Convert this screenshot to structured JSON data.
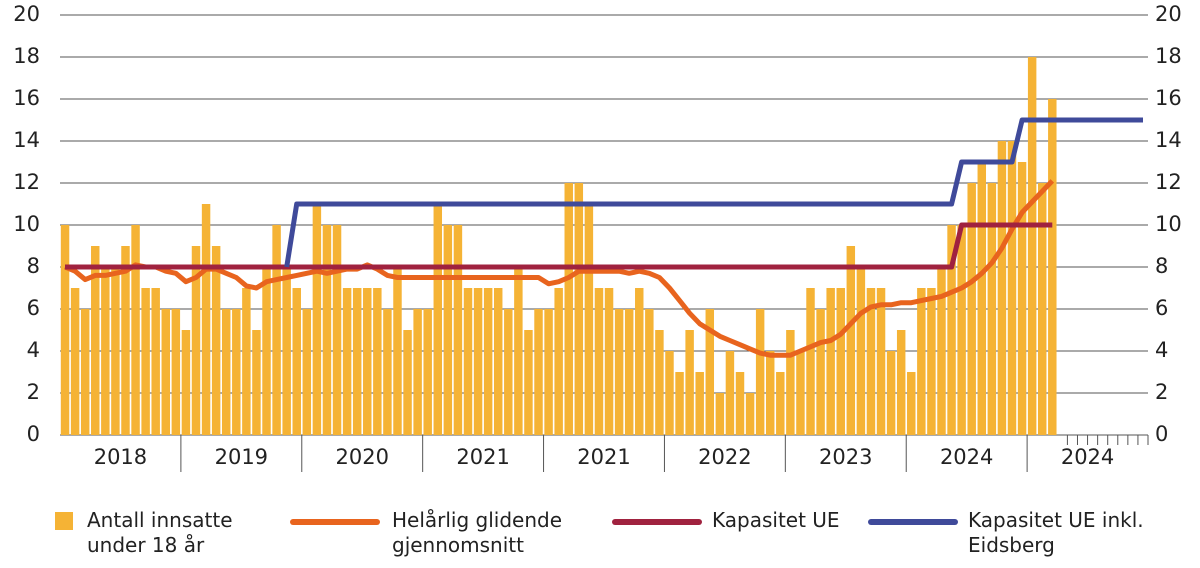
{
  "chart_data": {
    "type": "bar",
    "groups": [
      "2018",
      "2019",
      "2020",
      "2021",
      "2021",
      "2022",
      "2023",
      "2024",
      "2024"
    ],
    "categories": [
      null,
      null,
      null,
      null,
      null,
      null,
      null,
      null,
      null,
      null,
      null,
      null,
      null,
      null,
      null,
      null,
      null,
      null,
      null,
      null,
      null,
      null,
      null,
      null,
      null,
      null,
      null,
      null,
      null,
      null,
      null,
      null,
      null,
      null,
      null,
      null,
      null,
      null,
      null,
      null,
      null,
      null,
      null,
      null,
      null,
      null,
      null,
      null,
      null,
      null,
      null,
      null,
      null,
      null,
      null,
      null,
      null,
      null,
      null,
      null,
      null,
      null,
      null,
      null,
      null,
      null,
      null,
      null,
      null,
      null,
      null,
      null,
      null,
      null,
      null,
      null,
      null,
      null,
      null,
      null,
      null,
      null,
      null,
      null,
      null,
      null,
      null,
      null,
      null,
      null,
      null,
      null,
      null,
      null,
      null,
      null,
      null,
      null,
      null,
      null,
      null,
      null,
      null,
      null,
      null,
      null,
      null,
      null
    ],
    "series": [
      {
        "name": "Antall innsatte under 18 år",
        "color": "#f5b335",
        "type": "bar",
        "values": [
          10,
          7,
          6,
          9,
          8,
          8,
          9,
          10,
          7,
          7,
          6,
          6,
          5,
          9,
          11,
          9,
          6,
          6,
          7,
          5,
          8,
          10,
          8,
          7,
          6,
          11,
          10,
          10,
          7,
          7,
          7,
          7,
          6,
          8,
          5,
          6,
          6,
          11,
          10,
          10,
          7,
          7,
          7,
          7,
          6,
          8,
          5,
          6,
          6,
          7,
          12,
          12,
          11,
          7,
          7,
          6,
          6,
          7,
          6,
          5,
          4,
          3,
          5,
          3,
          6,
          2,
          4,
          3,
          2,
          6,
          4,
          3,
          5,
          4,
          7,
          6,
          7,
          7,
          9,
          8,
          7,
          7,
          4,
          5,
          3,
          7,
          7,
          8,
          10,
          10,
          12,
          13,
          12,
          14,
          14,
          13,
          18,
          12,
          16,
          null,
          null,
          null,
          null,
          null,
          null,
          null,
          null,
          null
        ]
      },
      {
        "name": "Helårlig glidende gjennomsnitt",
        "color": "#e8641e",
        "type": "line",
        "values": [
          8,
          7.8,
          7.4,
          7.6,
          7.6,
          7.7,
          7.8,
          8.1,
          8,
          8,
          7.8,
          7.7,
          7.3,
          7.5,
          7.9,
          7.9,
          7.7,
          7.5,
          7.1,
          7,
          7.3,
          7.4,
          7.5,
          7.6,
          7.7,
          7.8,
          7.7,
          7.8,
          7.9,
          7.9,
          8.1,
          7.9,
          7.6,
          7.5,
          7.5,
          7.5,
          7.5,
          7.5,
          7.5,
          7.5,
          7.5,
          7.5,
          7.5,
          7.5,
          7.5,
          7.5,
          7.5,
          7.5,
          7.2,
          7.3,
          7.5,
          7.8,
          7.8,
          7.8,
          7.8,
          7.8,
          7.7,
          7.8,
          7.7,
          7.5,
          7,
          6.4,
          5.8,
          5.3,
          5,
          4.7,
          4.5,
          4.3,
          4.1,
          3.9,
          3.8,
          3.8,
          3.8,
          4,
          4.2,
          4.4,
          4.5,
          4.8,
          5.3,
          5.8,
          6.1,
          6.2,
          6.2,
          6.3,
          6.3,
          6.4,
          6.5,
          6.6,
          6.8,
          7,
          7.3,
          7.7,
          8.2,
          8.9,
          9.8,
          10.6,
          11.1,
          11.6,
          12.1,
          null,
          null,
          null,
          null,
          null,
          null,
          null,
          null,
          null
        ]
      },
      {
        "name": "Kapasitet UE",
        "color": "#a0223f",
        "type": "line",
        "values": [
          8,
          8,
          8,
          8,
          8,
          8,
          8,
          8,
          8,
          8,
          8,
          8,
          8,
          8,
          8,
          8,
          8,
          8,
          8,
          8,
          8,
          8,
          8,
          8,
          8,
          8,
          8,
          8,
          8,
          8,
          8,
          8,
          8,
          8,
          8,
          8,
          8,
          8,
          8,
          8,
          8,
          8,
          8,
          8,
          8,
          8,
          8,
          8,
          8,
          8,
          8,
          8,
          8,
          8,
          8,
          8,
          8,
          8,
          8,
          8,
          8,
          8,
          8,
          8,
          8,
          8,
          8,
          8,
          8,
          8,
          8,
          8,
          8,
          8,
          8,
          8,
          8,
          8,
          8,
          8,
          8,
          8,
          8,
          8,
          8,
          8,
          8,
          8,
          8,
          10,
          10,
          10,
          10,
          10,
          10,
          10,
          10,
          10,
          10,
          null,
          null,
          null,
          null,
          null,
          null,
          null,
          null,
          null
        ]
      },
      {
        "name": "Kapasitet UE inkl. Eidsberg",
        "color": "#3f4a9a",
        "type": "line",
        "values": [
          null,
          null,
          null,
          null,
          null,
          null,
          null,
          null,
          null,
          null,
          null,
          null,
          null,
          null,
          null,
          null,
          null,
          null,
          null,
          null,
          null,
          null,
          8,
          11,
          11,
          11,
          11,
          11,
          11,
          11,
          11,
          11,
          11,
          11,
          11,
          11,
          11,
          11,
          11,
          11,
          11,
          11,
          11,
          11,
          11,
          11,
          11,
          11,
          11,
          11,
          11,
          11,
          11,
          11,
          11,
          11,
          11,
          11,
          11,
          11,
          11,
          11,
          11,
          11,
          11,
          11,
          11,
          11,
          11,
          11,
          11,
          11,
          11,
          11,
          11,
          11,
          11,
          11,
          11,
          11,
          11,
          11,
          11,
          11,
          11,
          11,
          11,
          11,
          11,
          13,
          13,
          13,
          13,
          13,
          13,
          15,
          15,
          15,
          15,
          15,
          15,
          15,
          15,
          15,
          15,
          15,
          15,
          15
        ]
      }
    ],
    "ylim": [
      0,
      20
    ],
    "yticks": [
      0,
      2,
      4,
      6,
      8,
      10,
      12,
      14,
      16,
      18,
      20
    ],
    "y2lim": [
      0,
      20
    ],
    "y2ticks": [
      0,
      2,
      4,
      6,
      8,
      10,
      12,
      14,
      16,
      18,
      20
    ],
    "grid": true
  }
}
